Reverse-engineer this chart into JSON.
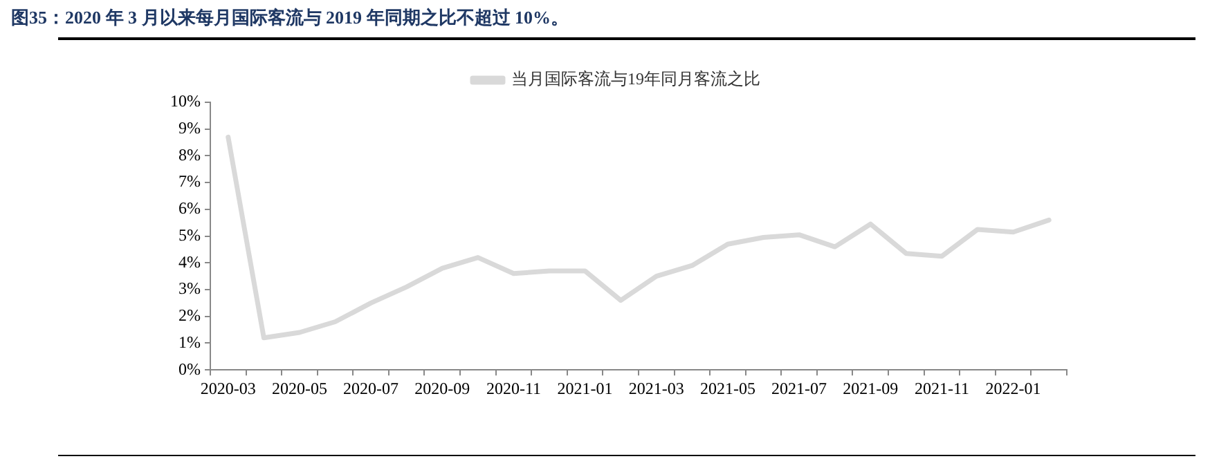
{
  "chart_data": {
    "type": "line",
    "title": "图35：2020 年 3 月以来每月国际客流与 2019 年同期之比不超过 10%。",
    "categories": [
      "2020-03",
      null,
      "2020-05",
      null,
      "2020-07",
      null,
      "2020-09",
      null,
      "2020-11",
      null,
      "2021-01",
      null,
      "2021-03",
      null,
      "2021-05",
      null,
      "2021-07",
      null,
      "2021-09",
      null,
      "2021-11",
      null,
      "2022-01",
      null
    ],
    "series": [
      {
        "name": "当月国际客流与19年同月客流之比",
        "color": "#d9d9d9",
        "values": [
          8.7,
          1.2,
          1.4,
          1.8,
          2.5,
          3.1,
          3.8,
          4.2,
          3.6,
          3.7,
          3.7,
          2.6,
          3.5,
          3.9,
          4.7,
          4.95,
          5.05,
          4.6,
          5.45,
          4.35,
          4.25,
          5.25,
          5.15,
          5.6
        ]
      }
    ],
    "ylim": [
      0,
      10
    ],
    "yticks": [
      {
        "value": 0,
        "label": "0%"
      },
      {
        "value": 1,
        "label": "1%"
      },
      {
        "value": 2,
        "label": "2%"
      },
      {
        "value": 3,
        "label": "3%"
      },
      {
        "value": 4,
        "label": "4%"
      },
      {
        "value": 5,
        "label": "5%"
      },
      {
        "value": 6,
        "label": "6%"
      },
      {
        "value": 7,
        "label": "7%"
      },
      {
        "value": 8,
        "label": "8%"
      },
      {
        "value": 9,
        "label": "9%"
      },
      {
        "value": 10,
        "label": "10%"
      }
    ],
    "grid": false,
    "legend": "top",
    "marker": "none",
    "line_style": "solid"
  }
}
